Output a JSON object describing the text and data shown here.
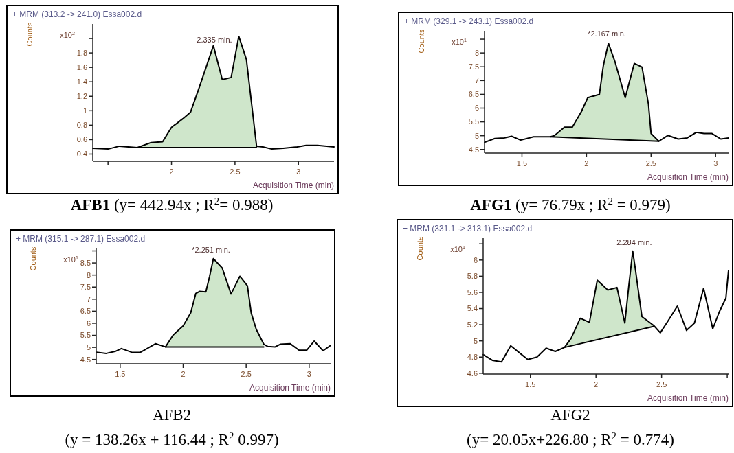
{
  "chart_data": [
    {
      "type": "line",
      "title": "+ MRM (313.2 -> 241.0) Essa002.d",
      "xlabel": "Acquisition Time (min)",
      "ylabel": "Counts",
      "xlim": [
        1.38,
        3.28
      ],
      "ylim": [
        0.3,
        2.2
      ],
      "xticks": [
        {
          "value": 1.5,
          "label": null
        },
        2,
        2.5,
        3
      ],
      "yticks": [
        0.4,
        0.6,
        0.8,
        1,
        1.2,
        1.4,
        1.6,
        1.8,
        {
          "value": 2,
          "label": null
        }
      ],
      "series": [
        {
          "type": "line",
          "color": "#000000",
          "x": [
            1.38,
            1.5,
            1.59,
            1.66,
            1.73,
            1.84,
            1.93,
            2.0,
            2.09,
            2.15,
            2.22,
            2.33,
            2.4,
            2.47,
            2.53,
            2.59,
            2.67,
            2.72,
            2.79,
            2.88,
            2.99,
            3.06,
            3.15,
            3.28
          ],
          "values": [
            0.48,
            0.47,
            0.51,
            0.5,
            0.49,
            0.56,
            0.57,
            0.77,
            0.89,
            0.98,
            1.33,
            1.9,
            1.43,
            1.46,
            2.03,
            1.71,
            0.51,
            0.5,
            0.47,
            0.48,
            0.5,
            0.52,
            0.52,
            0.5
          ],
          "lower": [
            null,
            null,
            null,
            null,
            0.49,
            0.49,
            0.49,
            0.49,
            0.49,
            0.49,
            0.49,
            0.49,
            0.49,
            0.49,
            0.49,
            0.49,
            0.49,
            null,
            null,
            null,
            null,
            null,
            null,
            null
          ],
          "upper": [
            null,
            null,
            null,
            null,
            0.49,
            0.56,
            0.57,
            0.77,
            0.89,
            0.98,
            1.33,
            1.9,
            1.43,
            1.46,
            2.03,
            1.71,
            0.51,
            null,
            null,
            null,
            null,
            null,
            null,
            null
          ]
        },
        {
          "type": "line",
          "color": "#000000",
          "x": [
            1.73,
            2.67
          ],
          "values": [
            0.49,
            0.49
          ]
        }
      ],
      "annotations": [
        "x10$^{2}$",
        "2.335 min.",
        "AFB1 (y= 442.94x ; R$^{2}$= 0.988)"
      ]
    },
    {
      "type": "line",
      "title": "+ MRM (329.1 -> 243.1) Essa002.d",
      "xlabel": "Acquisition Time (min)",
      "ylabel": "Counts",
      "xlim": [
        1.21,
        3.1
      ],
      "ylim": [
        4.37,
        8.8
      ],
      "xticks": [
        1.5,
        2,
        2.5,
        3
      ],
      "yticks": [
        4.5,
        5,
        5.5,
        6,
        6.5,
        7,
        7.5,
        8,
        {
          "value": 8.5,
          "label": null
        }
      ],
      "series": [
        {
          "type": "line",
          "color": "#000000",
          "x": [
            1.21,
            1.29,
            1.36,
            1.42,
            1.49,
            1.59,
            1.72,
            1.75,
            1.83,
            1.89,
            1.96,
            2.01,
            2.1,
            2.13,
            2.17,
            2.22,
            2.3,
            2.37,
            2.43,
            2.48,
            2.5,
            2.56,
            2.63,
            2.71,
            2.78,
            2.85,
            2.91,
            2.97,
            3.04,
            3.1
          ],
          "values": [
            4.76,
            4.9,
            4.92,
            4.98,
            4.84,
            4.96,
            4.96,
            5.0,
            5.31,
            5.31,
            5.87,
            6.38,
            6.5,
            7.53,
            8.35,
            7.69,
            6.38,
            7.62,
            7.49,
            6.14,
            5.08,
            4.8,
            5.01,
            4.88,
            4.92,
            5.12,
            5.08,
            5.08,
            4.88,
            4.92
          ],
          "lower": [
            null,
            null,
            null,
            null,
            null,
            null,
            4.96,
            4.95,
            4.94,
            4.93,
            4.91,
            4.9,
            4.89,
            4.88,
            4.87,
            4.86,
            4.85,
            4.84,
            4.83,
            4.82,
            4.81,
            4.8,
            null,
            null,
            null,
            null,
            null,
            null,
            null,
            null
          ],
          "upper": [
            null,
            null,
            null,
            null,
            null,
            null,
            4.96,
            5.0,
            5.31,
            5.31,
            5.87,
            6.38,
            6.5,
            7.53,
            8.35,
            7.69,
            6.38,
            7.62,
            7.49,
            6.14,
            5.08,
            4.8,
            null,
            null,
            null,
            null,
            null,
            null,
            null,
            null
          ]
        },
        {
          "type": "line",
          "color": "#000000",
          "x": [
            1.72,
            2.56
          ],
          "values": [
            4.96,
            4.8
          ]
        }
      ],
      "annotations": [
        "x10$^{1}$",
        "*2.167 min.",
        "AFG1 (y= 76.79x ; R$^{2}$ = 0.979)"
      ]
    },
    {
      "type": "line",
      "title": "+ MRM (315.1 -> 287.1) Essa002.d",
      "xlabel": "Acquisition Time (min)",
      "ylabel": "Counts",
      "xlim": [
        1.31,
        3.17
      ],
      "ylim": [
        4.32,
        9.1
      ],
      "xticks": [
        1.5,
        2,
        2.5,
        3
      ],
      "yticks": [
        4.5,
        5,
        5.5,
        6,
        6.5,
        7,
        7.5,
        8,
        8.5,
        {
          "value": 9,
          "label": null
        }
      ],
      "series": [
        {
          "type": "line",
          "color": "#000000",
          "x": [
            1.31,
            1.39,
            1.46,
            1.51,
            1.59,
            1.66,
            1.78,
            1.86,
            1.92,
            2.0,
            2.06,
            2.1,
            2.13,
            2.18,
            2.21,
            2.24,
            2.31,
            2.38,
            2.45,
            2.51,
            2.54,
            2.58,
            2.64,
            2.67,
            2.73,
            2.77,
            2.85,
            2.92,
            2.98,
            3.04,
            3.11,
            3.17
          ],
          "values": [
            4.8,
            4.75,
            4.83,
            4.95,
            4.8,
            4.79,
            5.15,
            5.02,
            5.51,
            5.89,
            6.43,
            7.23,
            7.32,
            7.3,
            7.95,
            8.68,
            8.29,
            7.21,
            7.95,
            7.55,
            6.43,
            5.75,
            5.13,
            5.04,
            5.02,
            5.13,
            5.15,
            4.88,
            4.88,
            5.26,
            4.86,
            5.08
          ],
          "lower": [
            null,
            null,
            null,
            null,
            null,
            null,
            null,
            5.02,
            5.02,
            5.02,
            5.02,
            5.02,
            5.02,
            5.02,
            5.02,
            5.02,
            5.02,
            5.02,
            5.02,
            5.02,
            5.02,
            5.02,
            5.02,
            null,
            null,
            null,
            null,
            null,
            null,
            null,
            null,
            null
          ],
          "upper": [
            null,
            null,
            null,
            null,
            null,
            null,
            null,
            5.02,
            5.51,
            5.89,
            6.43,
            7.23,
            7.32,
            7.3,
            7.95,
            8.68,
            8.29,
            7.21,
            7.95,
            7.55,
            6.43,
            5.75,
            5.13,
            null,
            null,
            null,
            null,
            null,
            null,
            null,
            null,
            null
          ]
        },
        {
          "type": "line",
          "color": "#000000",
          "x": [
            1.86,
            2.64
          ],
          "values": [
            5.02,
            5.02
          ]
        }
      ],
      "annotations": [
        "x10$^{1}$",
        "*2.251 min.",
        "AFB2",
        "(y = 138.26x + 116.44 ; R$^{2}$ 0.997)"
      ]
    },
    {
      "type": "line",
      "title": "+ MRM (331.1 -> 313.1) Essa002.d",
      "xlabel": "Acquisition Time (min)",
      "ylabel": "Counts",
      "xlim": [
        1.14,
        3.01
      ],
      "ylim": [
        4.59,
        6.27
      ],
      "xticks": [
        1.5,
        2,
        2.5,
        {
          "value": 3,
          "label": null
        }
      ],
      "yticks": [
        4.6,
        4.8,
        5,
        5.2,
        5.4,
        5.6,
        5.8,
        6,
        {
          "value": 6.2,
          "label": null
        }
      ],
      "series": [
        {
          "type": "line",
          "color": "#000000",
          "x": [
            1.14,
            1.21,
            1.28,
            1.35,
            1.48,
            1.55,
            1.62,
            1.69,
            1.76,
            1.81,
            1.88,
            1.95,
            2.01,
            2.09,
            2.16,
            2.22,
            2.25,
            2.28,
            2.3,
            2.35,
            2.44,
            2.49,
            2.55,
            2.62,
            2.69,
            2.75,
            2.82,
            2.89,
            2.94,
            2.99,
            3.01
          ],
          "values": [
            4.83,
            4.76,
            4.74,
            4.94,
            4.77,
            4.8,
            4.91,
            4.87,
            4.92,
            5.03,
            5.28,
            5.23,
            5.75,
            5.63,
            5.66,
            5.22,
            5.68,
            6.11,
            5.89,
            5.3,
            5.19,
            5.1,
            5.25,
            5.43,
            5.13,
            5.22,
            5.65,
            5.15,
            5.36,
            5.53,
            5.87
          ],
          "lower": [
            null,
            null,
            null,
            null,
            null,
            null,
            null,
            null,
            4.92,
            4.94,
            4.97,
            4.99,
            5.02,
            5.05,
            5.07,
            5.1,
            5.11,
            5.12,
            5.13,
            5.15,
            5.18,
            null,
            null,
            null,
            null,
            null,
            null,
            null,
            null,
            null,
            null
          ],
          "upper": [
            null,
            null,
            null,
            null,
            null,
            null,
            null,
            null,
            4.92,
            5.03,
            5.28,
            5.23,
            5.75,
            5.63,
            5.66,
            5.22,
            5.68,
            6.11,
            5.89,
            5.3,
            5.19,
            null,
            null,
            null,
            null,
            null,
            null,
            null,
            null,
            null,
            null
          ]
        },
        {
          "type": "line",
          "color": "#000000",
          "x": [
            1.76,
            2.44
          ],
          "values": [
            4.92,
            5.18
          ]
        }
      ],
      "annotations": [
        "x10$^{1}$",
        "2.284 min.",
        "AFG2",
        "(y= 20.05x+226.80 ; R$^{2}$ = 0.774)"
      ]
    }
  ]
}
